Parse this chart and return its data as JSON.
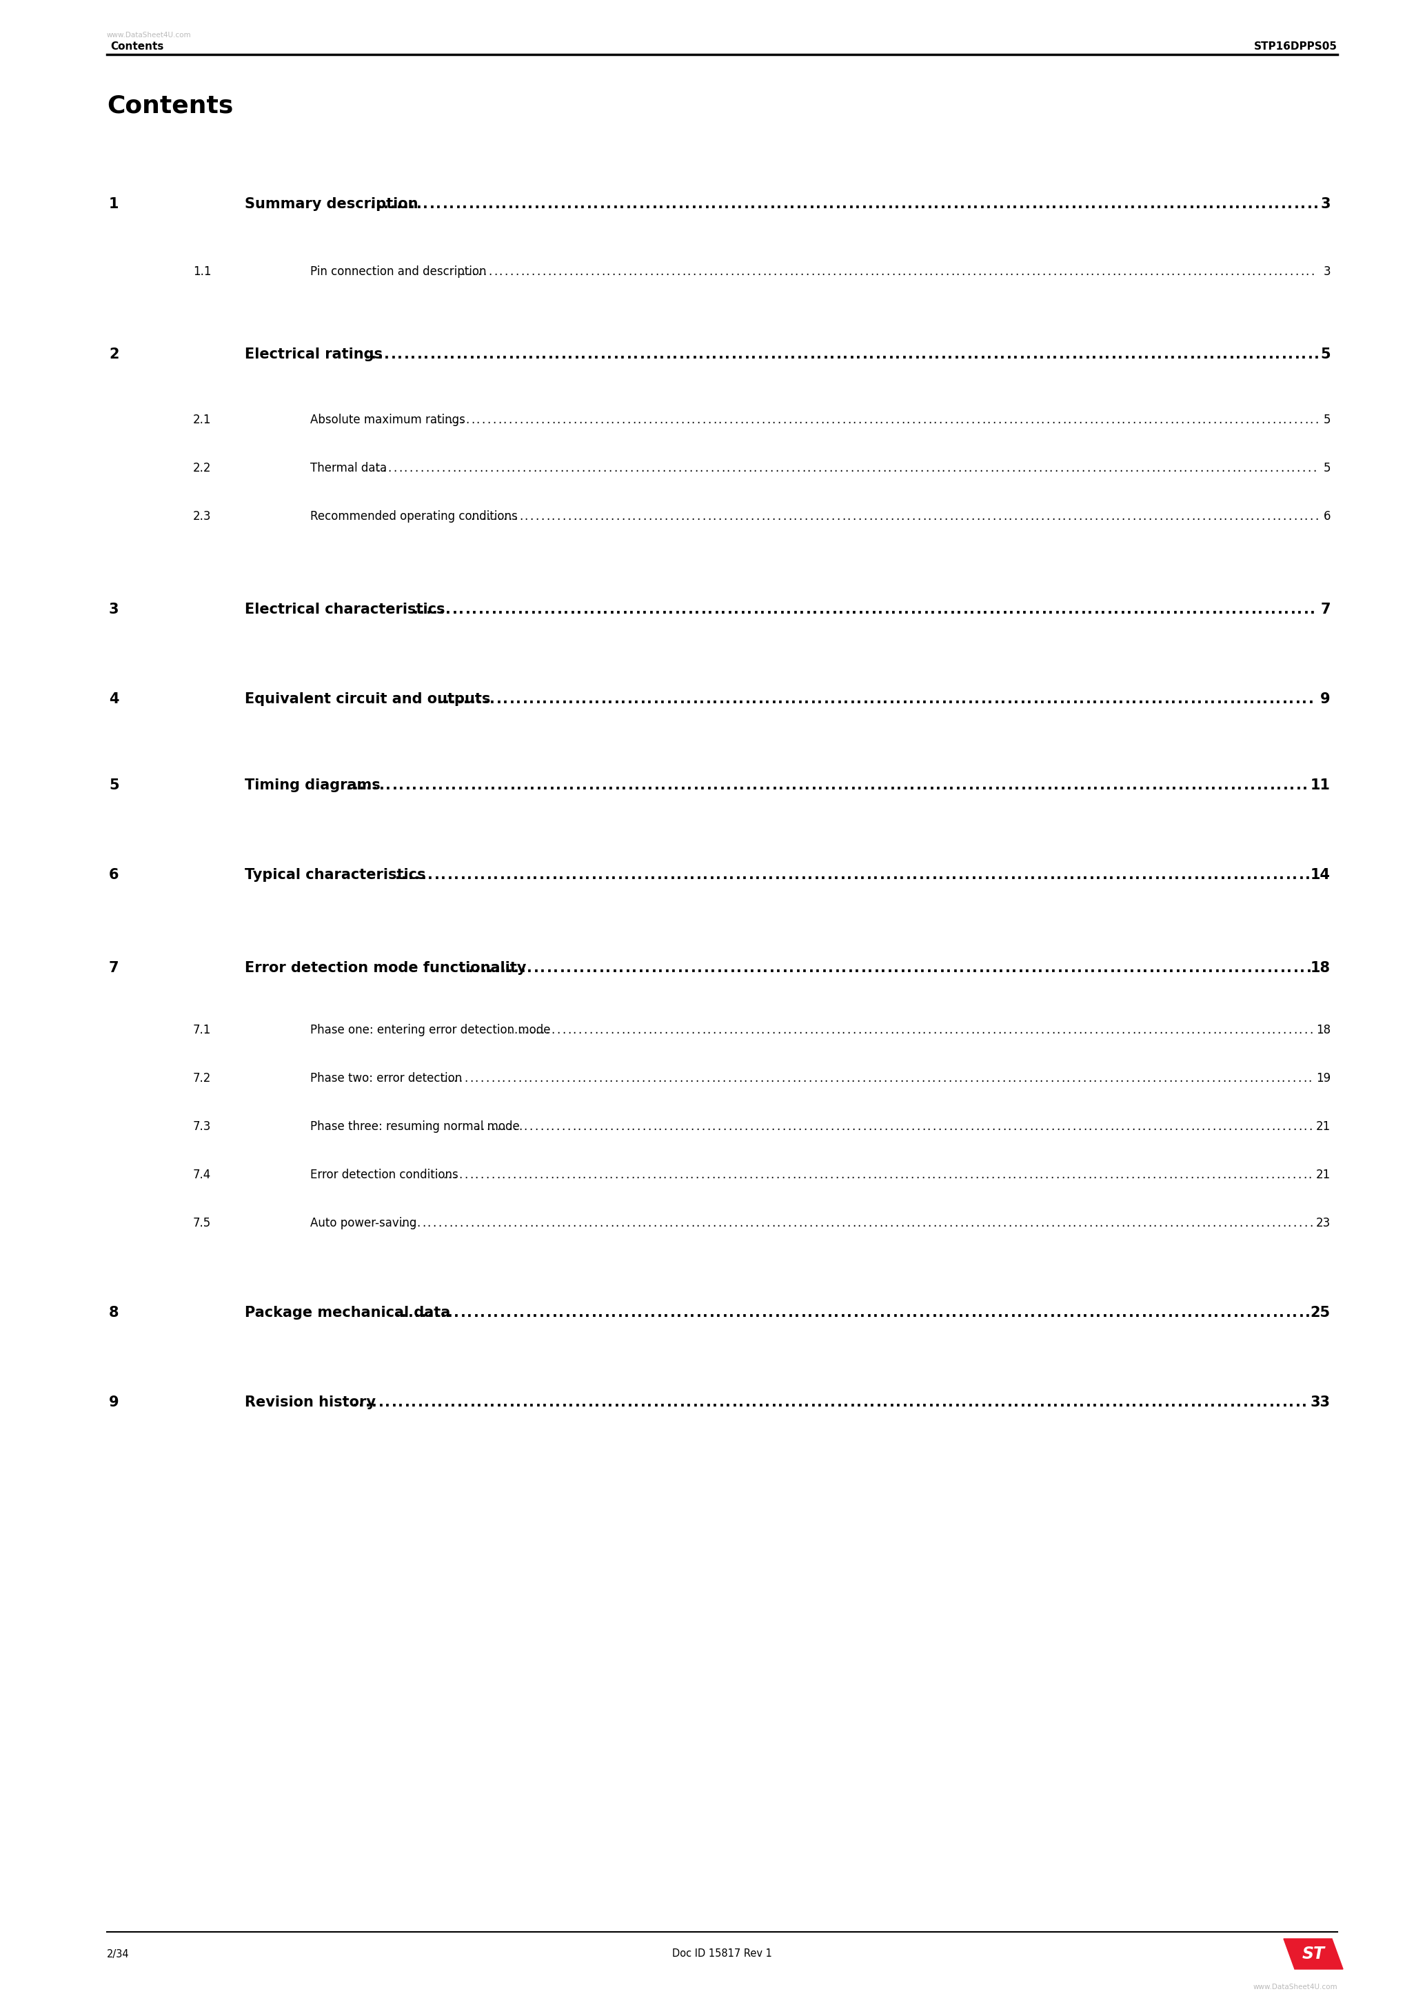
{
  "page_bg": "#ffffff",
  "header_left": "Contents",
  "header_right": "STP16DPPS05",
  "watermark_top": "www.DataSheet4U.com",
  "watermark_bottom": "www.DataSheet4U.com",
  "title": "Contents",
  "footer_left": "2/34",
  "footer_center": "Doc ID 15817 Rev 1",
  "toc_entries": [
    {
      "num": "1",
      "level": 1,
      "text": "Summary description",
      "page": "3"
    },
    {
      "num": "1.1",
      "level": 2,
      "text": "Pin connection and description",
      "page": "3"
    },
    {
      "num": "2",
      "level": 1,
      "text": "Electrical ratings",
      "page": "5"
    },
    {
      "num": "2.1",
      "level": 2,
      "text": "Absolute maximum ratings",
      "page": "5"
    },
    {
      "num": "2.2",
      "level": 2,
      "text": "Thermal data",
      "page": "5"
    },
    {
      "num": "2.3",
      "level": 2,
      "text": "Recommended operating conditions",
      "page": "6"
    },
    {
      "num": "3",
      "level": 1,
      "text": "Electrical characteristics",
      "page": "7"
    },
    {
      "num": "4",
      "level": 1,
      "text": "Equivalent circuit and outputs",
      "page": "9"
    },
    {
      "num": "5",
      "level": 1,
      "text": "Timing diagrams",
      "page": "11"
    },
    {
      "num": "6",
      "level": 1,
      "text": "Typical characteristics",
      "page": "14"
    },
    {
      "num": "7",
      "level": 1,
      "text": "Error detection mode functionality",
      "page": "18"
    },
    {
      "num": "7.1",
      "level": 2,
      "text": "Phase one: entering error detection mode",
      "page": "18"
    },
    {
      "num": "7.2",
      "level": 2,
      "text": "Phase two: error detection",
      "page": "19"
    },
    {
      "num": "7.3",
      "level": 2,
      "text": "Phase three: resuming normal mode",
      "page": "21"
    },
    {
      "num": "7.4",
      "level": 2,
      "text": "Error detection conditions",
      "page": "21"
    },
    {
      "num": "7.5",
      "level": 2,
      "text": "Auto power-saving",
      "page": "23"
    },
    {
      "num": "8",
      "level": 1,
      "text": "Package mechanical data",
      "page": "25"
    },
    {
      "num": "9",
      "level": 1,
      "text": "Revision history",
      "page": "33"
    }
  ],
  "l1_fs": 15,
  "l2_fs": 12,
  "header_fs": 11,
  "title_fs": 26,
  "footer_fs": 10.5,
  "watermark_fs": 7.5,
  "dot_char": ".",
  "header_color": "#000000",
  "text_color": "#000000",
  "dot_color": "#000000",
  "logo_color": "#e8192c",
  "logo_text_color": "#ffffff",
  "watermark_color": "#bbbbbb",
  "line_color": "#000000"
}
